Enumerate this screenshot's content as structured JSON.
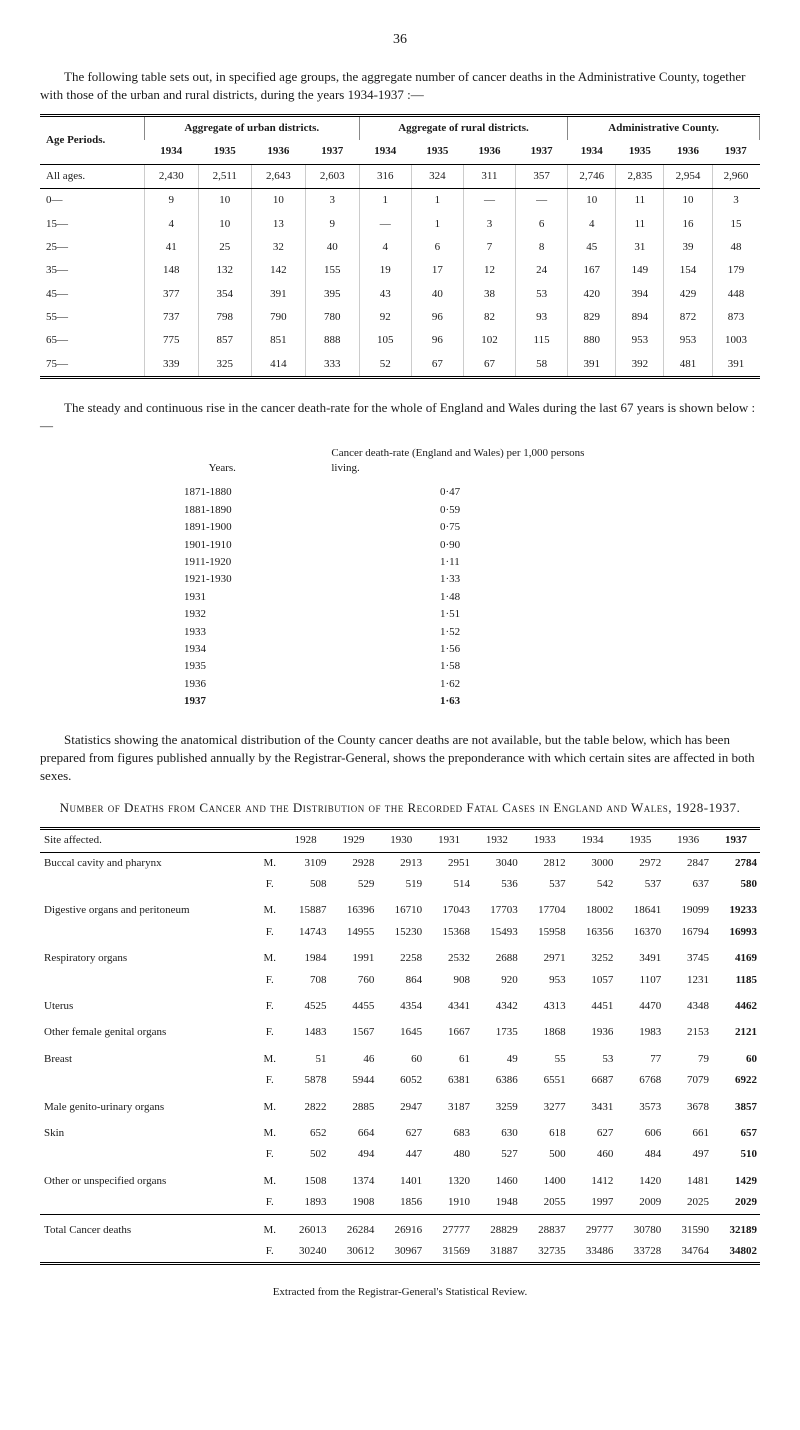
{
  "pageNumber": "36",
  "intro": "The following table sets out, in specified age groups, the aggregate number of cancer deaths in the Administrative County, together with those of the urban and rural districts, during the years 1934-1937 :—",
  "t1": {
    "rowHeader": "Age Periods.",
    "groups": [
      "Aggregate of urban districts.",
      "Aggregate of rural districts.",
      "Administrative County."
    ],
    "years": [
      "1934",
      "1935",
      "1936",
      "1937",
      "1934",
      "1935",
      "1936",
      "1937",
      "1934",
      "1935",
      "1936",
      "1937"
    ],
    "allAgesLabel": "All ages.",
    "allAges": [
      "2,430",
      "2,511",
      "2,643",
      "2,603",
      "316",
      "324",
      "311",
      "357",
      "2,746",
      "2,835",
      "2,954",
      "2,960"
    ],
    "rows": [
      {
        "label": "0—",
        "v": [
          "9",
          "10",
          "10",
          "3",
          "1",
          "1",
          "—",
          "—",
          "10",
          "11",
          "10",
          "3"
        ]
      },
      {
        "label": "15—",
        "v": [
          "4",
          "10",
          "13",
          "9",
          "—",
          "1",
          "3",
          "6",
          "4",
          "11",
          "16",
          "15"
        ]
      },
      {
        "label": "25—",
        "v": [
          "41",
          "25",
          "32",
          "40",
          "4",
          "6",
          "7",
          "8",
          "45",
          "31",
          "39",
          "48"
        ]
      },
      {
        "label": "35—",
        "v": [
          "148",
          "132",
          "142",
          "155",
          "19",
          "17",
          "12",
          "24",
          "167",
          "149",
          "154",
          "179"
        ]
      },
      {
        "label": "45—",
        "v": [
          "377",
          "354",
          "391",
          "395",
          "43",
          "40",
          "38",
          "53",
          "420",
          "394",
          "429",
          "448"
        ]
      },
      {
        "label": "55—",
        "v": [
          "737",
          "798",
          "790",
          "780",
          "92",
          "96",
          "82",
          "93",
          "829",
          "894",
          "872",
          "873"
        ]
      },
      {
        "label": "65—",
        "v": [
          "775",
          "857",
          "851",
          "888",
          "105",
          "96",
          "102",
          "115",
          "880",
          "953",
          "953",
          "1003"
        ]
      },
      {
        "label": "75—",
        "v": [
          "339",
          "325",
          "414",
          "333",
          "52",
          "67",
          "67",
          "58",
          "391",
          "392",
          "481",
          "391"
        ]
      }
    ]
  },
  "mid1": "The steady and continuous rise in the cancer death-rate for the whole of England and Wales during the last 67 years is shown below :—",
  "ratesHead": {
    "years": "Years.",
    "desc": "Cancer death-rate (England and Wales) per 1,000 persons living."
  },
  "rates": [
    {
      "y": "1871-1880",
      "r": "0·47"
    },
    {
      "y": "1881-1890",
      "r": "0·59"
    },
    {
      "y": "1891-1900",
      "r": "0·75"
    },
    {
      "y": "1901-1910",
      "r": "0·90"
    },
    {
      "y": "1911-1920",
      "r": "1·11"
    },
    {
      "y": "1921-1930",
      "r": "1·33"
    },
    {
      "y": "1931",
      "r": "1·48"
    },
    {
      "y": "1932",
      "r": "1·51"
    },
    {
      "y": "1933",
      "r": "1·52"
    },
    {
      "y": "1934",
      "r": "1·56"
    },
    {
      "y": "1935",
      "r": "1·58"
    },
    {
      "y": "1936",
      "r": "1·62"
    },
    {
      "y": "1937",
      "r": "1·63"
    }
  ],
  "mid2": "Statistics showing the anatomical distribution of the County cancer deaths are not available, but the table below, which has been prepared from figures published annually by the Registrar-General, shows the preponderance with which certain sites are affected in both sexes.",
  "caption": "Number of Deaths from Cancer and the Distribution of the Recorded Fatal Cases in England and Wales, 1928-1937.",
  "t2": {
    "siteHeader": "Site affected.",
    "years": [
      "1928",
      "1929",
      "1930",
      "1931",
      "1932",
      "1933",
      "1934",
      "1935",
      "1936",
      "1937"
    ],
    "rows": [
      {
        "site": "Buccal cavity and pharynx",
        "sex": "M.",
        "v": [
          "3109",
          "2928",
          "2913",
          "2951",
          "3040",
          "2812",
          "3000",
          "2972",
          "2847",
          "2784"
        ]
      },
      {
        "site": "",
        "sex": "F.",
        "v": [
          "508",
          "529",
          "519",
          "514",
          "536",
          "537",
          "542",
          "537",
          "637",
          "580"
        ]
      },
      {
        "site": "Digestive organs and peritoneum",
        "sex": "M.",
        "v": [
          "15887",
          "16396",
          "16710",
          "17043",
          "17703",
          "17704",
          "18002",
          "18641",
          "19099",
          "19233"
        ]
      },
      {
        "site": "",
        "sex": "F.",
        "v": [
          "14743",
          "14955",
          "15230",
          "15368",
          "15493",
          "15958",
          "16356",
          "16370",
          "16794",
          "16993"
        ]
      },
      {
        "site": "Respiratory organs",
        "sex": "M.",
        "v": [
          "1984",
          "1991",
          "2258",
          "2532",
          "2688",
          "2971",
          "3252",
          "3491",
          "3745",
          "4169"
        ]
      },
      {
        "site": "",
        "sex": "F.",
        "v": [
          "708",
          "760",
          "864",
          "908",
          "920",
          "953",
          "1057",
          "1107",
          "1231",
          "1185"
        ]
      },
      {
        "site": "Uterus",
        "sex": "F.",
        "v": [
          "4525",
          "4455",
          "4354",
          "4341",
          "4342",
          "4313",
          "4451",
          "4470",
          "4348",
          "4462"
        ]
      },
      {
        "site": "Other female genital organs",
        "sex": "F.",
        "v": [
          "1483",
          "1567",
          "1645",
          "1667",
          "1735",
          "1868",
          "1936",
          "1983",
          "2153",
          "2121"
        ]
      },
      {
        "site": "Breast",
        "sex": "M.",
        "v": [
          "51",
          "46",
          "60",
          "61",
          "49",
          "55",
          "53",
          "77",
          "79",
          "60"
        ]
      },
      {
        "site": "",
        "sex": "F.",
        "v": [
          "5878",
          "5944",
          "6052",
          "6381",
          "6386",
          "6551",
          "6687",
          "6768",
          "7079",
          "6922"
        ]
      },
      {
        "site": "Male genito-urinary organs",
        "sex": "M.",
        "v": [
          "2822",
          "2885",
          "2947",
          "3187",
          "3259",
          "3277",
          "3431",
          "3573",
          "3678",
          "3857"
        ]
      },
      {
        "site": "Skin",
        "sex": "M.",
        "v": [
          "652",
          "664",
          "627",
          "683",
          "630",
          "618",
          "627",
          "606",
          "661",
          "657"
        ]
      },
      {
        "site": "",
        "sex": "F.",
        "v": [
          "502",
          "494",
          "447",
          "480",
          "527",
          "500",
          "460",
          "484",
          "497",
          "510"
        ]
      },
      {
        "site": "Other or unspecified organs",
        "sex": "M.",
        "v": [
          "1508",
          "1374",
          "1401",
          "1320",
          "1460",
          "1400",
          "1412",
          "1420",
          "1481",
          "1429"
        ]
      },
      {
        "site": "",
        "sex": "F.",
        "v": [
          "1893",
          "1908",
          "1856",
          "1910",
          "1948",
          "2055",
          "1997",
          "2009",
          "2025",
          "2029"
        ]
      }
    ],
    "totals": [
      {
        "site": "Total Cancer deaths",
        "sex": "M.",
        "v": [
          "26013",
          "26284",
          "26916",
          "27777",
          "28829",
          "28837",
          "29777",
          "30780",
          "31590",
          "32189"
        ]
      },
      {
        "site": "",
        "sex": "F.",
        "v": [
          "30240",
          "30612",
          "30967",
          "31569",
          "31887",
          "32735",
          "33486",
          "33728",
          "34764",
          "34802"
        ]
      }
    ]
  },
  "footnote": "Extracted from the Registrar-General's Statistical Review."
}
